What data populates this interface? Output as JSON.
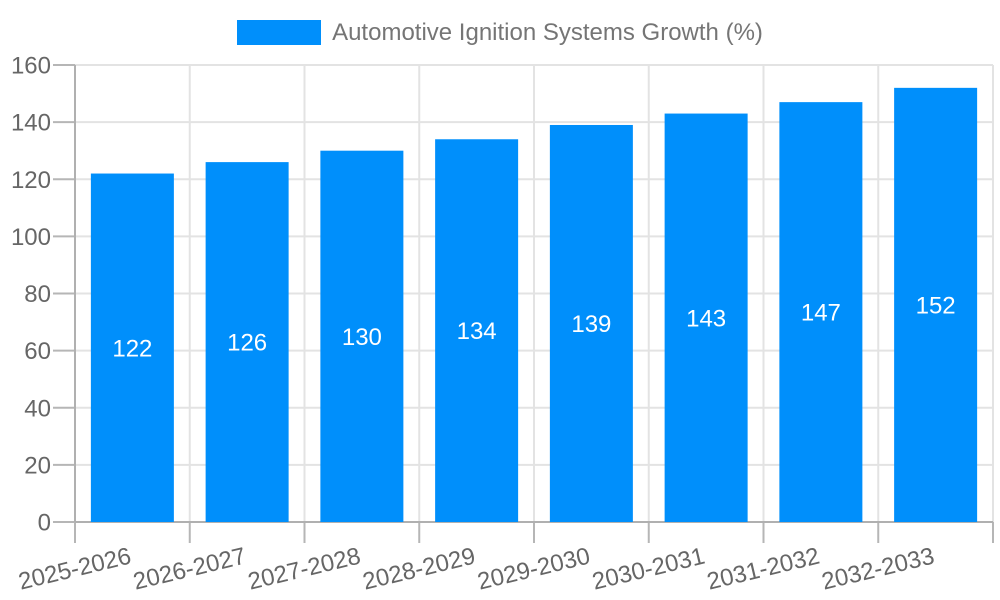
{
  "chart_data": {
    "type": "bar",
    "title": "Automotive Ignition Systems Growth (%)",
    "series_name": "Automotive Ignition Systems Growth (%)",
    "categories": [
      "2025-2026",
      "2026-2027",
      "2027-2028",
      "2028-2029",
      "2029-2030",
      "2030-2031",
      "2031-2032",
      "2032-2033"
    ],
    "values": [
      122,
      126,
      130,
      134,
      139,
      143,
      147,
      152
    ],
    "xlabel": "",
    "ylabel": "",
    "ylim": [
      0,
      160
    ],
    "yticks": [
      0,
      20,
      40,
      60,
      80,
      100,
      120,
      140,
      160
    ],
    "grid": true,
    "legend_position": "top",
    "bar_label_position": "center",
    "colors": {
      "bar": "#008FFB",
      "bar_label": "#FFFFFF",
      "axis_text": "#666666",
      "legend_text": "#757575",
      "grid": "#E3E3E3",
      "axis_line": "#B0B0B0",
      "tick": "#B6B6B6",
      "background": "#FFFFFF"
    }
  }
}
